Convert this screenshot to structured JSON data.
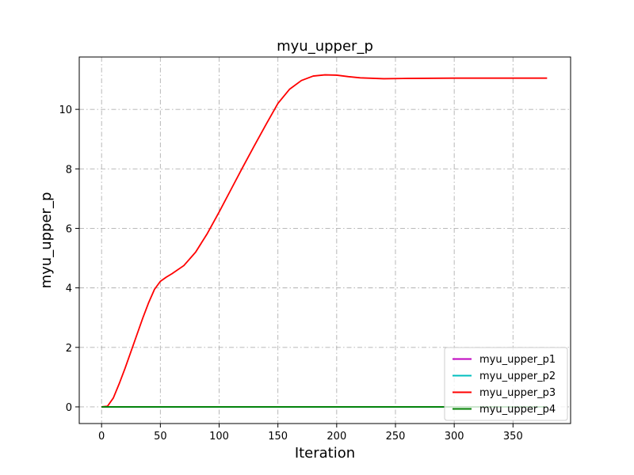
{
  "chart_data": {
    "type": "line",
    "title": "myu_upper_p",
    "xlabel": "Iteration",
    "ylabel": "myu_upper_p",
    "xlim": [
      -19,
      399
    ],
    "ylim": [
      -0.56,
      11.76
    ],
    "xticks": [
      0,
      50,
      100,
      150,
      200,
      250,
      300,
      350
    ],
    "yticks": [
      0,
      2,
      4,
      6,
      8,
      10
    ],
    "grid": true,
    "legend_position": "lower-right",
    "series": [
      {
        "name": "myu_upper_p1",
        "color": "#bf00bf",
        "x": [
          0,
          379
        ],
        "y": [
          0,
          0
        ]
      },
      {
        "name": "myu_upper_p2",
        "color": "#00bfbf",
        "x": [
          0,
          379
        ],
        "y": [
          0,
          0
        ]
      },
      {
        "name": "myu_upper_p3",
        "color": "#ff0000",
        "x": [
          0,
          5,
          10,
          15,
          20,
          25,
          30,
          35,
          40,
          45,
          50,
          55,
          60,
          70,
          80,
          90,
          100,
          110,
          120,
          130,
          140,
          150,
          160,
          170,
          180,
          190,
          200,
          210,
          220,
          240,
          260,
          300,
          340,
          379
        ],
        "y": [
          0,
          0.02,
          0.3,
          0.78,
          1.3,
          1.86,
          2.42,
          2.98,
          3.5,
          3.95,
          4.22,
          4.36,
          4.48,
          4.75,
          5.2,
          5.83,
          6.55,
          7.3,
          8.05,
          8.78,
          9.5,
          10.2,
          10.68,
          10.97,
          11.12,
          11.16,
          11.15,
          11.1,
          11.06,
          11.03,
          11.04,
          11.05,
          11.05,
          11.05
        ]
      },
      {
        "name": "myu_upper_p4",
        "color": "#008000",
        "x": [
          0,
          379
        ],
        "y": [
          0,
          0
        ]
      }
    ]
  }
}
